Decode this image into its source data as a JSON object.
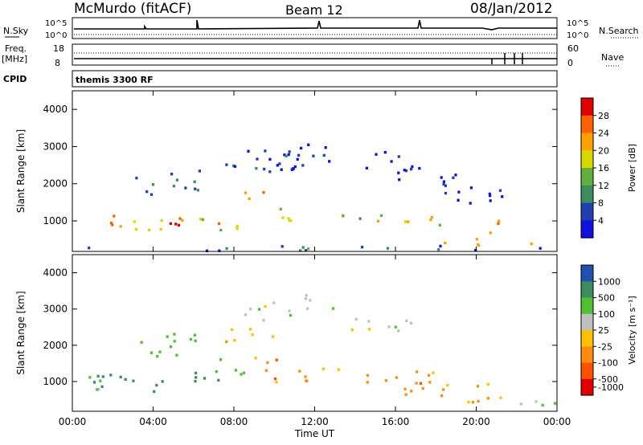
{
  "header": {
    "station": "McMurdo (fitACF)",
    "beam": "Beam 12",
    "date": "08/Jan/2012"
  },
  "top_panels": {
    "nsky_label": "N.Sky",
    "nsearch_label": "N.Search",
    "n_tick_top": "10^5",
    "n_tick_bottom": "10^0",
    "freq_label": "Freq.",
    "freq_unit": "[MHz]",
    "freq_ticks": [
      "18",
      "8"
    ],
    "nave_label": "Nave",
    "nave_ticks": [
      "60",
      "0"
    ],
    "cpid_label": "CPID",
    "cpid_value": "themis 3300 RF"
  },
  "chart_data": [
    {
      "type": "heatmap",
      "name": "power",
      "ylabel": "Slant Range [km]",
      "xlabel": "",
      "ylim": [
        180,
        4500
      ],
      "xlim": [
        "00:00",
        "24:00"
      ],
      "yticks": [
        1000,
        2000,
        3000,
        4000
      ],
      "colorbar": {
        "label": "Power [dB]",
        "ticks": [
          "28",
          "24",
          "20",
          "16",
          "12",
          "8",
          "4"
        ],
        "colors": [
          "#e00000",
          "#ff6000",
          "#ffa000",
          "#d8d800",
          "#60b040",
          "#3c8c60",
          "#2040b0",
          "#1010e0"
        ]
      },
      "blobs": [
        {
          "t": 1.5,
          "r": 1050,
          "dt": 1.2,
          "dr": 180,
          "level": 6
        },
        {
          "t": 3.5,
          "r": 900,
          "dt": 1.5,
          "dr": 200,
          "level": 5
        },
        {
          "t": 5.5,
          "r": 950,
          "dt": 1.8,
          "dr": 200,
          "level": 6
        },
        {
          "t": 7.5,
          "r": 1000,
          "dt": 1.5,
          "dr": 220,
          "level": 5
        },
        {
          "t": 9.3,
          "r": 1700,
          "dt": 1.4,
          "dr": 150,
          "level": 6
        },
        {
          "t": 10.2,
          "r": 1150,
          "dt": 1.5,
          "dr": 250,
          "level": 4
        },
        {
          "t": 13.2,
          "r": 1100,
          "dt": 1.0,
          "dr": 200,
          "level": 4
        },
        {
          "t": 15.7,
          "r": 1050,
          "dt": 1.2,
          "dr": 180,
          "level": 5
        },
        {
          "t": 17.2,
          "r": 1000,
          "dt": 1.3,
          "dr": 200,
          "level": 5
        },
        {
          "t": 19.5,
          "r": 420,
          "dt": 1.5,
          "dr": 150,
          "level": 6
        },
        {
          "t": 21.0,
          "r": 800,
          "dt": 0.7,
          "dr": 250,
          "level": 6
        },
        {
          "t": 23.0,
          "r": 430,
          "dt": 0.9,
          "dr": 180,
          "level": 5
        },
        {
          "t": 5.0,
          "r": 2000,
          "dt": 2.5,
          "dr": 350,
          "level": 2
        },
        {
          "t": 8.5,
          "r": 2600,
          "dt": 3.0,
          "dr": 400,
          "level": 1
        },
        {
          "t": 11.0,
          "r": 2800,
          "dt": 2.5,
          "dr": 350,
          "level": 1
        },
        {
          "t": 15.0,
          "r": 2500,
          "dt": 2.5,
          "dr": 400,
          "level": 1
        },
        {
          "t": 20.0,
          "r": 2000,
          "dt": 2.0,
          "dr": 500,
          "level": 1
        },
        {
          "t": 12.0,
          "r": 300,
          "dt": 12.0,
          "dr": 80,
          "level": 2
        }
      ]
    },
    {
      "type": "heatmap",
      "name": "velocity",
      "ylabel": "Slant Range [km]",
      "xlabel": "Time UT",
      "ylim": [
        180,
        4500
      ],
      "xlim": [
        "00:00",
        "24:00"
      ],
      "yticks": [
        1000,
        2000,
        3000,
        4000
      ],
      "xticks": [
        "00:00",
        "04:00",
        "08:00",
        "12:00",
        "16:00",
        "20:00",
        "00:00"
      ],
      "colorbar": {
        "label": "Velocity [m s^-1]",
        "ticks": [
          "1000",
          "500",
          "100",
          "25",
          "-25",
          "-100",
          "-500",
          "-1000"
        ],
        "colors": [
          "#2050b0",
          "#3c8c60",
          "#50c030",
          "#c0c0c0",
          "#ffc000",
          "#ff8c10",
          "#ff5000",
          "#e00000"
        ]
      },
      "blobs": [
        {
          "t": 1.8,
          "r": 1050,
          "dt": 1.6,
          "dr": 280,
          "level": 1
        },
        {
          "t": 4.5,
          "r": 1000,
          "dt": 1.6,
          "dr": 280,
          "level": 1
        },
        {
          "t": 6.5,
          "r": 1100,
          "dt": 1.2,
          "dr": 250,
          "level": 1
        },
        {
          "t": 0.7,
          "r": 1000,
          "dt": 0.8,
          "dr": 250,
          "level": 2
        },
        {
          "t": 7.8,
          "r": 1400,
          "dt": 1.2,
          "dr": 300,
          "level": 2
        },
        {
          "t": 5.0,
          "r": 2000,
          "dt": 2.5,
          "dr": 350,
          "level": 2
        },
        {
          "t": 9.8,
          "r": 1600,
          "dt": 1.6,
          "dr": 150,
          "level": 5
        },
        {
          "t": 10.5,
          "r": 1150,
          "dt": 1.8,
          "dr": 250,
          "level": 5
        },
        {
          "t": 16.5,
          "r": 1000,
          "dt": 2.5,
          "dr": 350,
          "level": 5
        },
        {
          "t": 19.5,
          "r": 800,
          "dt": 1.5,
          "dr": 350,
          "level": 5
        },
        {
          "t": 13.0,
          "r": 1400,
          "dt": 0.8,
          "dr": 250,
          "level": 4
        },
        {
          "t": 9.5,
          "r": 3000,
          "dt": 1.5,
          "dr": 300,
          "level": 3
        },
        {
          "t": 12.0,
          "r": 3200,
          "dt": 1.2,
          "dr": 250,
          "level": 3
        },
        {
          "t": 15.5,
          "r": 2600,
          "dt": 2.0,
          "dr": 300,
          "level": 3
        },
        {
          "t": 21.8,
          "r": 450,
          "dt": 1.2,
          "dr": 200,
          "level": 3
        },
        {
          "t": 23.5,
          "r": 350,
          "dt": 0.6,
          "dr": 150,
          "level": 2
        },
        {
          "t": 8.5,
          "r": 2200,
          "dt": 1.5,
          "dr": 300,
          "level": 4
        }
      ]
    }
  ]
}
